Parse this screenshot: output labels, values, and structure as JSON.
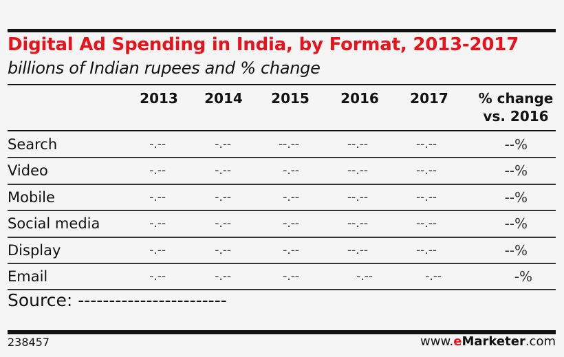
{
  "chart_data": {
    "type": "table",
    "title": "Digital Ad Spending in India, by Format, 2013-2017",
    "subtitle": "billions of Indian rupees and % change",
    "columns": [
      "2013",
      "2014",
      "2015",
      "2016",
      "2017",
      "% change vs. 2016"
    ],
    "columns_lines": [
      [
        "2013"
      ],
      [
        "2014"
      ],
      [
        "2015"
      ],
      [
        "2016"
      ],
      [
        "2017"
      ],
      [
        "% change",
        "vs. 2016"
      ]
    ],
    "rows": [
      {
        "label": "Search",
        "values": [
          "-.--",
          "-.--",
          "--.--",
          "--.--",
          "--.--",
          "--%"
        ]
      },
      {
        "label": "Video",
        "values": [
          "-.--",
          "-.--",
          "-.--",
          "--.--",
          "--.--",
          "--%"
        ]
      },
      {
        "label": "Mobile",
        "values": [
          "-.--",
          "-.--",
          "-.--",
          "--.--",
          "--.--",
          "--%"
        ]
      },
      {
        "label": "Social media",
        "values": [
          "-.--",
          "-.--",
          "-.--",
          "--.--",
          "--.--",
          "--%"
        ]
      },
      {
        "label": "Display",
        "values": [
          "-.--",
          "-.--",
          "-.--",
          "--.--",
          "--.--",
          "--%"
        ]
      },
      {
        "label": "Email",
        "values": [
          "-.--",
          "-.--",
          "-.--",
          "-.--",
          "-.--",
          "-%"
        ]
      }
    ],
    "source": "Source: ------------------------"
  },
  "footer": {
    "id": "238457",
    "url_prefix": "www.",
    "url_e": "e",
    "url_brand": "Marketer",
    "url_suffix": ".com"
  },
  "colors": {
    "title": "#e8121b",
    "brand_e": "#e8121b"
  }
}
